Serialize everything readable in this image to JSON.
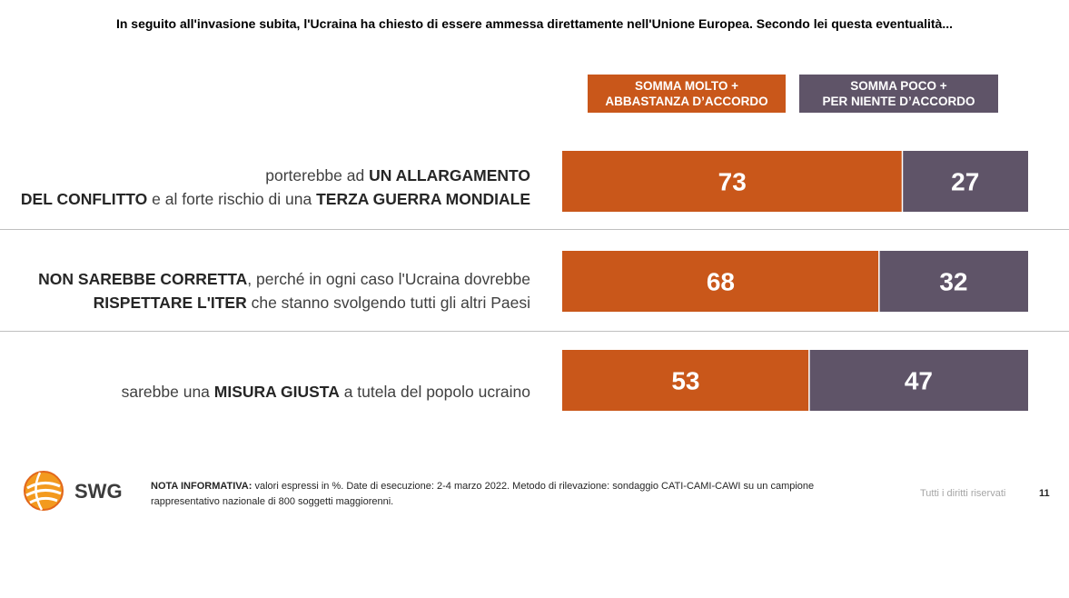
{
  "title": "In seguito all'invasione subita, l'Ucraina ha chiesto di essere ammessa direttamente nell'Unione Europea. Secondo lei questa eventualità...",
  "colors": {
    "agree": "#c9571a",
    "disagree": "#5f5468",
    "divider": "#bfbfbf"
  },
  "legend": {
    "agree": [
      "SOMMA MOLTO +",
      "ABBASTANZA D’ACCORDO"
    ],
    "disagree": [
      "SOMMA POCO +",
      "PER NIENTE D’ACCORDO"
    ]
  },
  "rows": [
    {
      "line1": [
        {
          "t": "porterebbe ad ",
          "b": false
        },
        {
          "t": "UN ALLARGAMENTO",
          "b": true
        }
      ],
      "line2": [
        {
          "t": "DEL CONFLITTO",
          "b": true
        },
        {
          "t": " e al forte rischio di una ",
          "b": false
        },
        {
          "t": "TERZA GUERRA MONDIALE",
          "b": true
        }
      ]
    },
    {
      "line1": [
        {
          "t": "NON SAREBBE CORRETTA",
          "b": true
        },
        {
          "t": ", perché in ogni caso l'Ucraina dovrebbe",
          "b": false
        }
      ],
      "line2": [
        {
          "t": "RISPETTARE L'ITER",
          "b": true
        },
        {
          "t": " che stanno svolgendo tutti gli altri Paesi",
          "b": false
        }
      ]
    },
    {
      "line1": [
        {
          "t": "sarebbe una ",
          "b": false
        },
        {
          "t": "MISURA GIUSTA",
          "b": true
        },
        {
          "t": " a tutela del popolo ucraino",
          "b": false
        }
      ],
      "line2": []
    }
  ],
  "chart_data": {
    "type": "bar",
    "orientation": "horizontal",
    "stacked": true,
    "categories": [
      "porterebbe ad UN ALLARGAMENTO DEL CONFLITTO e al forte rischio di una TERZA GUERRA MONDIALE",
      "NON SAREBBE CORRETTA, perché in ogni caso l'Ucraina dovrebbe RISPETTARE L'ITER che stanno svolgendo tutti gli altri Paesi",
      "sarebbe una MISURA GIUSTA a tutela del popolo ucraino"
    ],
    "series": [
      {
        "name": "SOMMA MOLTO + ABBASTANZA D’ACCORDO",
        "values": [
          73,
          68,
          53
        ],
        "color": "#c9571a"
      },
      {
        "name": "SOMMA POCO + PER NIENTE D’ACCORDO",
        "values": [
          27,
          32,
          47
        ],
        "color": "#5f5468"
      }
    ],
    "xlim": [
      0,
      100
    ],
    "grid": false,
    "legend_position": "top"
  },
  "footer": {
    "logo_text": "SWG",
    "note_bold": "NOTA INFORMATIVA:",
    "note_line1": " valori espressi in %. Date di esecuzione: 2-4 marzo 2022. Metodo di rilevazione: sondaggio CATI-CAMI-CAWI su un campione",
    "note_line2": "rappresentativo nazionale di 800 soggetti maggiorenni.",
    "rights": "Tutti i diritti riservati",
    "page": "11"
  }
}
